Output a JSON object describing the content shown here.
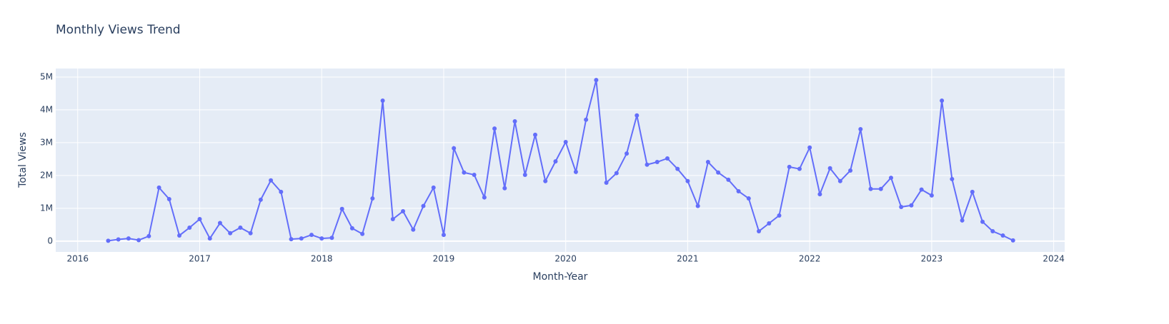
{
  "chart_data": {
    "type": "line",
    "title": "Monthly Views Trend",
    "xlabel": "Month-Year",
    "ylabel": "Total Views",
    "x": [
      "2016-04",
      "2016-05",
      "2016-06",
      "2016-07",
      "2016-08",
      "2016-09",
      "2016-10",
      "2016-11",
      "2016-12",
      "2017-01",
      "2017-02",
      "2017-03",
      "2017-04",
      "2017-05",
      "2017-06",
      "2017-07",
      "2017-08",
      "2017-09",
      "2017-10",
      "2017-11",
      "2017-12",
      "2018-01",
      "2018-02",
      "2018-03",
      "2018-04",
      "2018-05",
      "2018-06",
      "2018-07",
      "2018-08",
      "2018-09",
      "2018-10",
      "2018-11",
      "2018-12",
      "2019-01",
      "2019-02",
      "2019-03",
      "2019-04",
      "2019-05",
      "2019-06",
      "2019-07",
      "2019-08",
      "2019-09",
      "2019-10",
      "2019-11",
      "2019-12",
      "2020-01",
      "2020-02",
      "2020-03",
      "2020-04",
      "2020-05",
      "2020-06",
      "2020-07",
      "2020-08",
      "2020-09",
      "2020-10",
      "2020-11",
      "2020-12",
      "2021-01",
      "2021-02",
      "2021-03",
      "2021-04",
      "2021-05",
      "2021-06",
      "2021-07",
      "2021-08",
      "2021-09",
      "2021-10",
      "2021-11",
      "2021-12",
      "2022-01",
      "2022-02",
      "2022-03",
      "2022-04",
      "2022-05",
      "2022-06",
      "2022-07",
      "2022-08",
      "2022-09",
      "2022-10",
      "2022-11",
      "2022-12",
      "2023-01",
      "2023-02",
      "2023-03",
      "2023-04",
      "2023-05",
      "2023-06",
      "2023-07",
      "2023-08",
      "2023-09"
    ],
    "series": [
      {
        "name": "Total Views",
        "color": "#636efa",
        "values": [
          10000,
          50000,
          80000,
          30000,
          150000,
          1630000,
          1280000,
          170000,
          410000,
          670000,
          80000,
          550000,
          240000,
          410000,
          240000,
          1260000,
          1850000,
          1500000,
          60000,
          80000,
          190000,
          80000,
          100000,
          980000,
          390000,
          220000,
          1300000,
          4280000,
          670000,
          910000,
          350000,
          1070000,
          1630000,
          190000,
          2830000,
          2090000,
          2020000,
          1330000,
          3430000,
          1610000,
          3650000,
          2020000,
          3240000,
          1830000,
          2430000,
          3020000,
          2110000,
          3700000,
          4910000,
          1780000,
          2070000,
          2670000,
          3830000,
          2330000,
          2410000,
          2520000,
          2200000,
          1830000,
          1070000,
          2410000,
          2090000,
          1870000,
          1520000,
          1300000,
          300000,
          540000,
          780000,
          2260000,
          2200000,
          2850000,
          1430000,
          2220000,
          1830000,
          2150000,
          3410000,
          1590000,
          1590000,
          1930000,
          1040000,
          1090000,
          1570000,
          1390000,
          4280000,
          1890000,
          630000,
          1500000,
          590000,
          300000,
          170000,
          20000
        ]
      }
    ],
    "xlim": [
      2015.82,
      2024.09
    ],
    "xticks": [
      2016,
      2017,
      2018,
      2019,
      2020,
      2021,
      2022,
      2023,
      2024
    ],
    "ylim": [
      -330000,
      5260000
    ],
    "yticks": [
      0,
      {
        "value": 1000000,
        "label": "1M"
      },
      {
        "value": 2000000,
        "label": "2M"
      },
      {
        "value": 3000000,
        "label": "3M"
      },
      {
        "value": 4000000,
        "label": "4M"
      },
      {
        "value": 5000000,
        "label": "5M"
      }
    ],
    "grid": true
  }
}
